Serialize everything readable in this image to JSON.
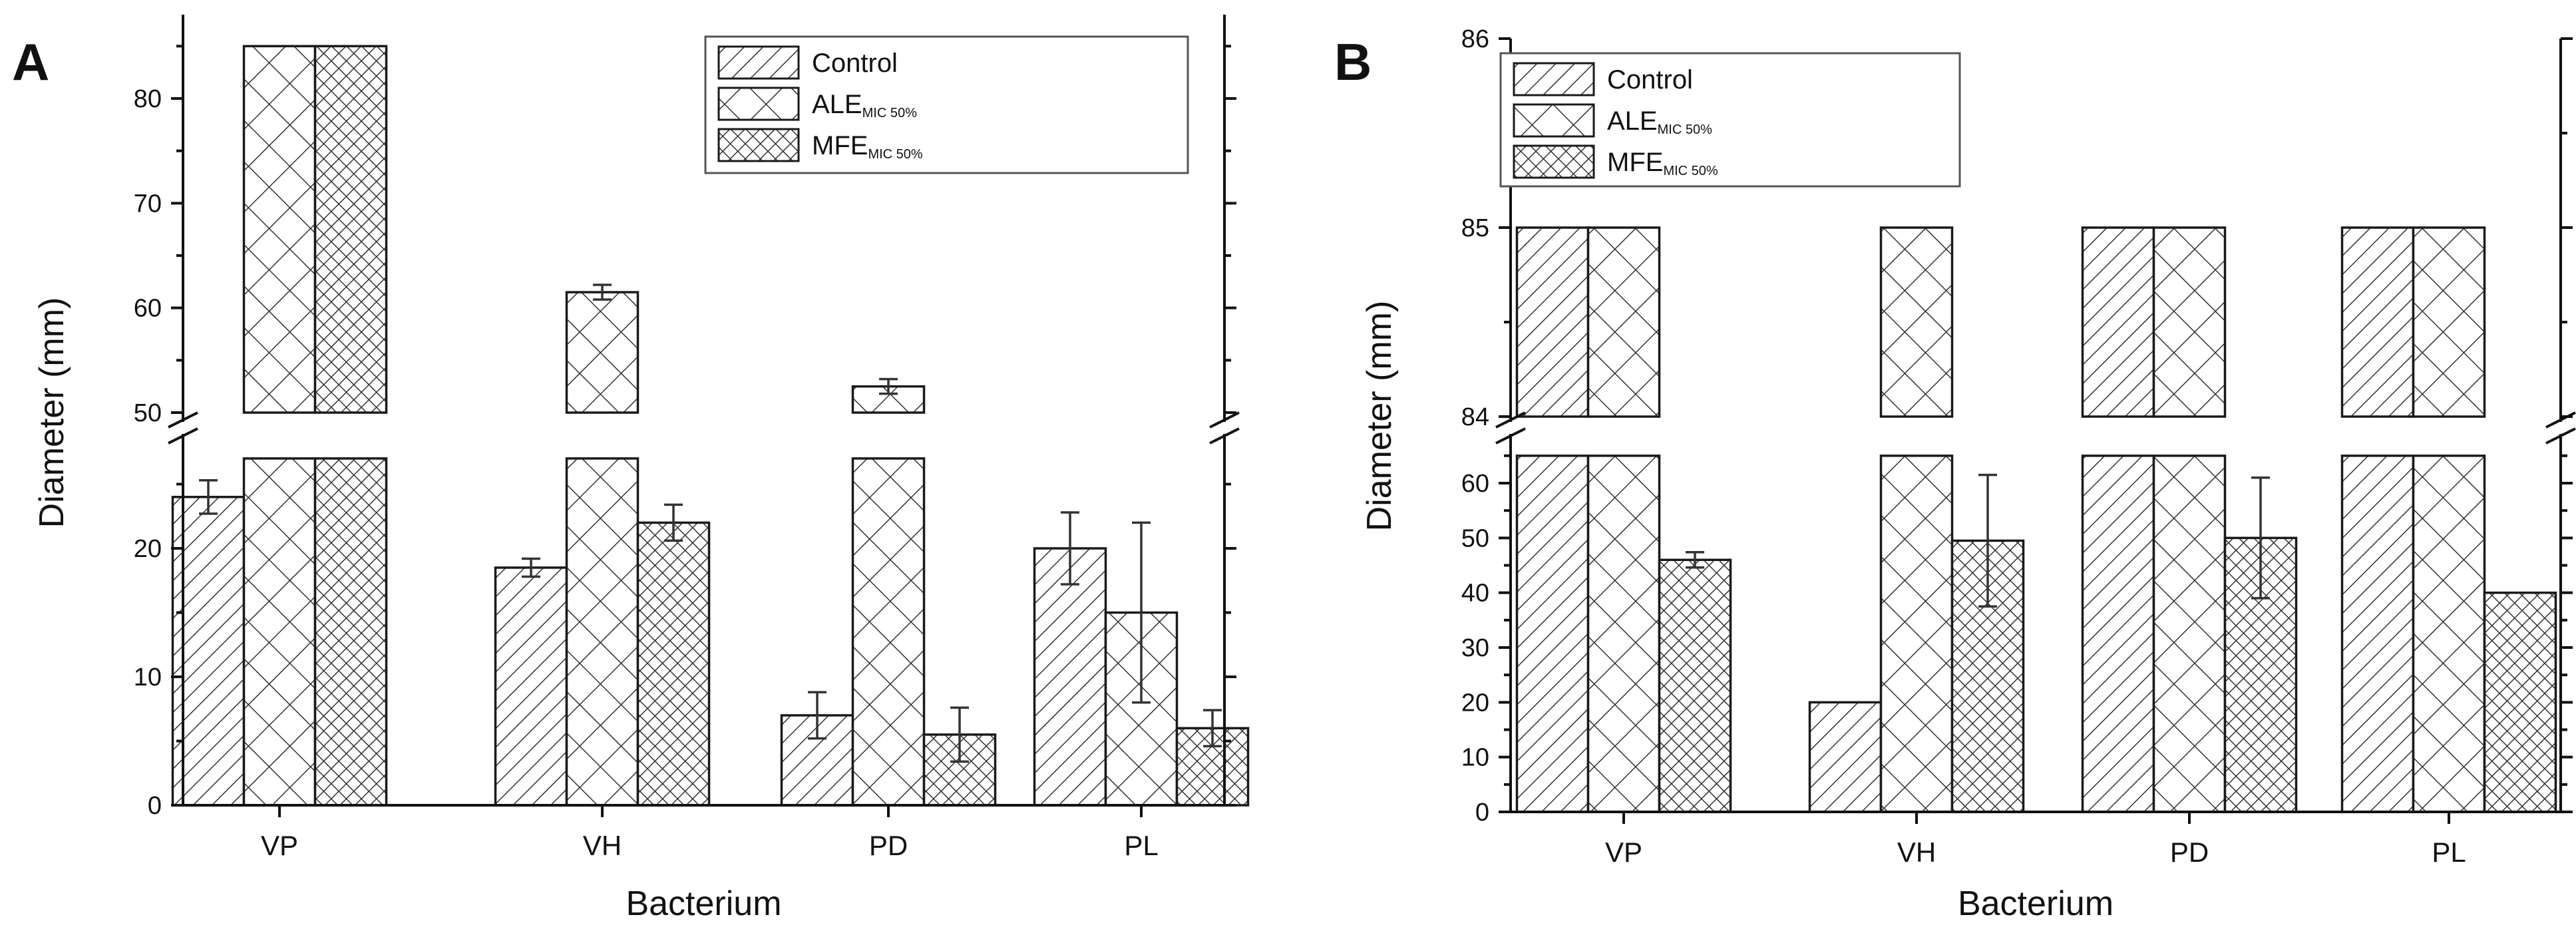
{
  "colors": {
    "ink": "#111111",
    "background": "#ffffff"
  },
  "legend": [
    {
      "label": "Control",
      "pattern": "hatch-diagonal"
    },
    {
      "label": "ALE",
      "subscript": "MIC 50%",
      "pattern": "hatch-cross-open"
    },
    {
      "label": "MFE",
      "subscript": "MIC 50%",
      "pattern": "hatch-cross-dense"
    }
  ],
  "chart_data": [
    {
      "panel": "A",
      "type": "bar",
      "xlabel": "Bacterium",
      "ylabel": "Diameter (mm)",
      "categories": [
        "VP",
        "VH",
        "PD",
        "PL"
      ],
      "axis_break": {
        "lower_range": [
          0,
          27
        ],
        "upper_range": [
          50,
          86
        ]
      },
      "lower_ticks": [
        0,
        10,
        20
      ],
      "upper_ticks": [
        50,
        60,
        70,
        80
      ],
      "legend_position": "top-right",
      "series": [
        {
          "name": "Control",
          "values": [
            24,
            18.5,
            7,
            20
          ],
          "errors": [
            1.3,
            0.7,
            1.8,
            2.8
          ]
        },
        {
          "name": "ALE MIC 50%",
          "values": [
            85,
            61.5,
            52.5,
            15
          ],
          "errors": [
            0,
            0.7,
            0.7,
            7
          ]
        },
        {
          "name": "MFE MIC 50%",
          "values": [
            85,
            22,
            5.5,
            6
          ],
          "errors": [
            0,
            1.4,
            2.1,
            1.4
          ]
        }
      ]
    },
    {
      "panel": "B",
      "type": "bar",
      "xlabel": "Bacterium",
      "ylabel": "Diameter (mm)",
      "categories": [
        "VP",
        "VH",
        "PD",
        "PL"
      ],
      "axis_break": {
        "lower_range": [
          0,
          65
        ],
        "upper_range": [
          84,
          86
        ]
      },
      "lower_ticks": [
        0,
        10,
        20,
        30,
        40,
        50,
        60
      ],
      "upper_ticks": [
        84,
        85,
        86
      ],
      "legend_position": "top-left",
      "series": [
        {
          "name": "Control",
          "values": [
            85,
            20,
            85,
            85
          ],
          "errors": [
            0,
            0,
            0,
            0
          ]
        },
        {
          "name": "ALE MIC 50%",
          "values": [
            85,
            85,
            85,
            85
          ],
          "errors": [
            0,
            0,
            0,
            0
          ]
        },
        {
          "name": "MFE MIC 50%",
          "values": [
            46,
            49.5,
            50,
            40
          ],
          "errors": [
            1.4,
            12,
            11,
            0
          ]
        }
      ]
    }
  ]
}
